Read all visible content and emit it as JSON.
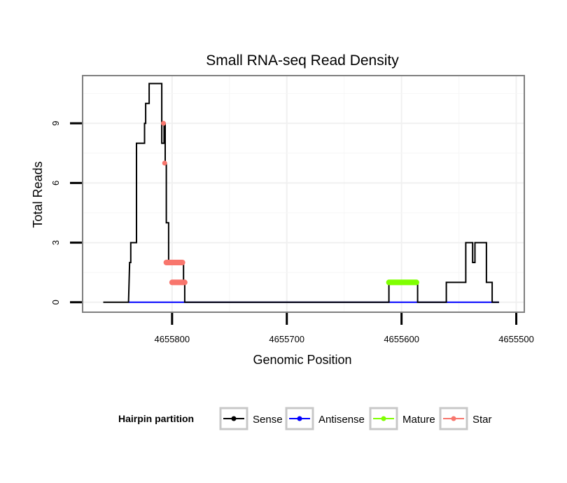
{
  "chart_data": {
    "type": "line",
    "title": "Small RNA-seq Read Density",
    "xlabel": "Genomic Position",
    "ylabel": "Total Reads",
    "x_reversed": true,
    "xlim": [
      4655878,
      4655493
    ],
    "ylim": [
      -0.5,
      11.4
    ],
    "x_ticks": [
      4655800,
      4655700,
      4655600,
      4655500
    ],
    "x_tick_labels": [
      "4655800",
      "4655700",
      "4655600",
      "4655500"
    ],
    "y_ticks": [
      0,
      3,
      6,
      9
    ],
    "y_tick_labels": [
      "0",
      "3",
      "6",
      "9"
    ],
    "grid": true,
    "legend": {
      "title": "Hairpin partition",
      "placement": "bottom",
      "entries": [
        "Sense",
        "Antisense",
        "Mature",
        "Star"
      ]
    },
    "series": [
      {
        "name": "Sense",
        "color": "#000000",
        "x": [
          4655860,
          4655838,
          4655837,
          4655836,
          4655836,
          4655834,
          4655834,
          4655831,
          4655831,
          4655824,
          4655824,
          4655823,
          4655823,
          4655822,
          4655822,
          4655820,
          4655820,
          4655811,
          4655811,
          4655810,
          4655810,
          4655809,
          4655809,
          4655807,
          4655807,
          4655806,
          4655806,
          4655805,
          4655805,
          4655803,
          4655803,
          4655790,
          4655790,
          4655789,
          4655789,
          4655612,
          4655611,
          4655611,
          4655587,
          4655586,
          4655586,
          4655562,
          4655561,
          4655561,
          4655547,
          4655547,
          4655545,
          4655544,
          4655544,
          4655538,
          4655538,
          4655536,
          4655536,
          4655526,
          4655526,
          4655521,
          4655521,
          4655515
        ],
        "y": [
          0,
          0,
          2,
          2,
          3,
          3,
          3,
          3,
          8,
          8,
          9,
          9,
          10,
          10,
          10,
          10,
          11,
          11,
          11,
          11,
          11,
          11,
          8,
          8,
          9,
          9,
          7,
          7,
          4,
          4,
          2,
          2,
          1,
          1,
          0,
          0,
          0,
          1,
          1,
          1,
          0,
          0,
          0,
          1,
          1,
          1,
          1,
          1,
          3,
          3,
          2,
          2,
          3,
          3,
          1,
          1,
          0,
          0
        ]
      },
      {
        "name": "Antisense",
        "color": "#0000ff",
        "x": [
          4655838,
          4655789,
          4655562,
          4655515
        ],
        "y": [
          0,
          0,
          0,
          0
        ]
      },
      {
        "name": "Mature",
        "color": "#7fff00",
        "x": [
          4655611,
          4655587
        ],
        "y": [
          1,
          1
        ]
      },
      {
        "name": "Star",
        "color": "#f8766d",
        "x": [
          4655809,
          4655806,
          4655807,
          4655806,
          4655805,
          4655803,
          4655803,
          4655790
        ],
        "y": [
          9,
          9,
          9,
          7,
          2,
          2,
          1,
          1
        ],
        "segments": [
          {
            "x": [
              4655809,
              4655806
            ],
            "y": [
              9,
              9
            ]
          },
          {
            "x": [
              4655807,
              4655806
            ],
            "y": [
              7,
              7
            ]
          },
          {
            "x": [
              4655805,
              4655791
            ],
            "y": [
              2,
              2
            ]
          },
          {
            "x": [
              4655800,
              4655789
            ],
            "y": [
              1,
              1
            ]
          }
        ]
      }
    ]
  }
}
